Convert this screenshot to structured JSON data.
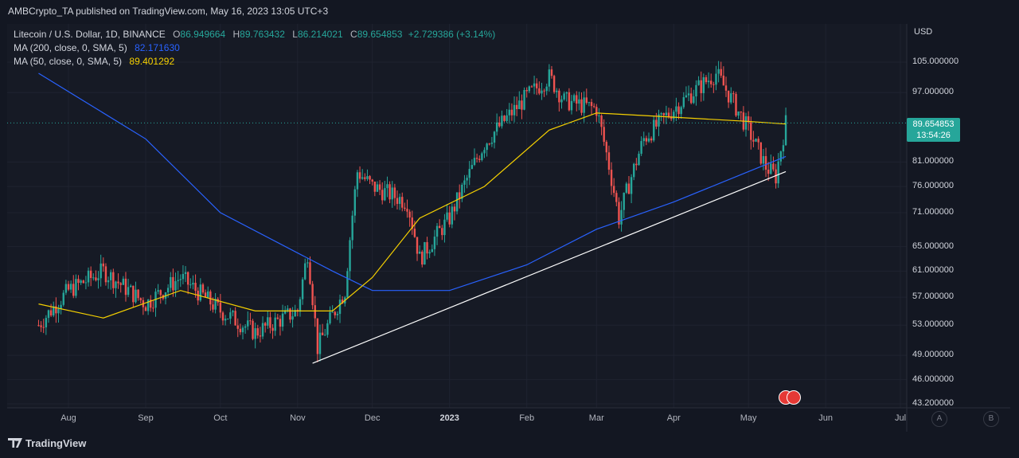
{
  "header": {
    "published": "AMBCrypto_TA published on TradingView.com, May 16, 2023 13:05 UTC+3"
  },
  "legend": {
    "symbol": "Litecoin / U.S. Dollar, 1D, BINANCE",
    "open_label": "O",
    "open": "86.949664",
    "high_label": "H",
    "high": "89.763432",
    "low_label": "L",
    "low": "86.214021",
    "close_label": "C",
    "close": "89.654853",
    "change": "+2.729386 (+3.14%)",
    "ma200_label": "MA (200, close, 0, SMA, 5)",
    "ma200_value": "82.171630",
    "ma50_label": "MA (50, close, 0, SMA, 5)",
    "ma50_value": "89.401292"
  },
  "price_scale": {
    "currency": "USD",
    "current_price": "89.654853",
    "countdown": "13:54:26"
  },
  "footer": {
    "brand": "TradingView"
  },
  "buttons": {
    "a": "A",
    "b": "B"
  },
  "colors": {
    "up": "#26a69a",
    "down": "#ef5350",
    "ma200": "#2962ff",
    "ma50": "#f5d000",
    "trendline": "#ffffff"
  },
  "chart_data": {
    "type": "candlestick",
    "title": "Litecoin / U.S. Dollar, 1D, BINANCE",
    "y_axis": {
      "scale": "log",
      "ticks": [
        "105.000000",
        "97.000000",
        "81.000000",
        "76.000000",
        "71.000000",
        "65.000000",
        "61.000000",
        "57.000000",
        "53.000000",
        "49.000000",
        "46.000000",
        "43.200000"
      ]
    },
    "x_axis": {
      "ticks": [
        "Aug",
        "Sep",
        "Oct",
        "Nov",
        "Dec",
        "2023",
        "Feb",
        "Mar",
        "Apr",
        "May",
        "Jun",
        "Jul"
      ]
    },
    "close_series": {
      "dates": [
        "2022-07-20",
        "2022-08-01",
        "2022-08-15",
        "2022-09-01",
        "2022-09-15",
        "2022-10-01",
        "2022-10-15",
        "2022-11-01",
        "2022-11-05",
        "2022-11-09",
        "2022-11-20",
        "2022-11-25",
        "2022-12-01",
        "2022-12-15",
        "2022-12-20",
        "2023-01-01",
        "2023-01-15",
        "2023-02-01",
        "2023-02-10",
        "2023-02-16",
        "2023-03-01",
        "2023-03-10",
        "2023-03-20",
        "2023-04-01",
        "2023-04-18",
        "2023-05-01",
        "2023-05-08",
        "2023-05-12",
        "2023-05-16"
      ],
      "values": [
        53,
        58,
        61,
        56,
        60,
        55,
        52,
        55,
        64,
        50,
        58,
        79,
        76,
        73,
        63,
        70,
        85,
        96,
        101,
        95,
        93,
        70,
        86,
        93,
        102,
        88,
        80,
        78,
        89.65
      ]
    },
    "series": [
      {
        "name": "MA (200, close, 0, SMA, 5)",
        "points": [
          [
            "2022-07-20",
            102
          ],
          [
            "2022-09-01",
            86
          ],
          [
            "2022-10-01",
            71
          ],
          [
            "2022-11-15",
            61
          ],
          [
            "2022-12-01",
            58
          ],
          [
            "2023-01-01",
            58
          ],
          [
            "2023-02-01",
            62
          ],
          [
            "2023-03-01",
            68
          ],
          [
            "2023-04-01",
            73
          ],
          [
            "2023-05-01",
            79
          ],
          [
            "2023-05-16",
            82.17
          ]
        ]
      },
      {
        "name": "MA (50, close, 0, SMA, 5)",
        "points": [
          [
            "2022-07-20",
            56
          ],
          [
            "2022-08-15",
            54
          ],
          [
            "2022-09-15",
            58
          ],
          [
            "2022-10-15",
            55
          ],
          [
            "2022-11-15",
            55
          ],
          [
            "2022-12-01",
            60
          ],
          [
            "2022-12-20",
            70
          ],
          [
            "2023-01-15",
            76
          ],
          [
            "2023-02-10",
            88
          ],
          [
            "2023-03-01",
            92
          ],
          [
            "2023-04-01",
            91
          ],
          [
            "2023-05-01",
            90
          ],
          [
            "2023-05-16",
            89.4
          ]
        ]
      }
    ],
    "trendline": [
      [
        "2022-11-07",
        48
      ],
      [
        "2023-05-16",
        79
      ]
    ]
  }
}
